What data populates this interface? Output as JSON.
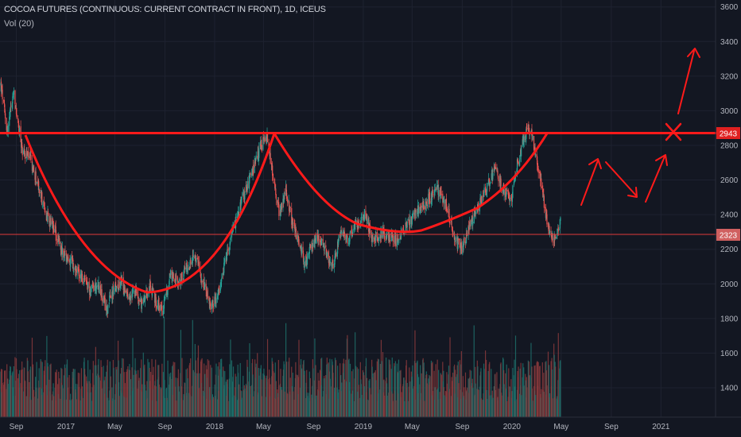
{
  "header": {
    "title": "COCOA FUTURES (CONTINUOUS: CURRENT CONTRACT IN FRONT), 1D, ICEUS",
    "volume_label": "Vol (20)"
  },
  "colors": {
    "background": "#131722",
    "grid": "#1e2230",
    "axis_text": "#b2b5be",
    "candle_up": "#26a69a",
    "candle_down": "#ef5350",
    "volume_up": "#1f6f6a",
    "volume_down": "#8a3a3c",
    "annotation": "#ff1a1a",
    "support_line": "#e03a3a",
    "label_bg": "#e02020",
    "support_label_bg": "#d06060"
  },
  "price_labels": {
    "resistance": "2943",
    "support": "2323"
  },
  "chart_data": {
    "type": "candlestick",
    "title": "COCOA FUTURES (CONTINUOUS: CURRENT CONTRACT IN FRONT), 1D, ICEUS",
    "indicator": "Vol (20)",
    "y_axis": {
      "ticks": [
        1400,
        1600,
        1800,
        2000,
        2200,
        2400,
        2600,
        2800,
        3000,
        3200,
        3400,
        3600
      ],
      "range": [
        1230,
        3640
      ]
    },
    "x_axis": {
      "labels": [
        {
          "text": "Sep",
          "date": "2016-09"
        },
        {
          "text": "2017",
          "date": "2017-01"
        },
        {
          "text": "May",
          "date": "2017-05"
        },
        {
          "text": "Sep",
          "date": "2017-09"
        },
        {
          "text": "2018",
          "date": "2018-01"
        },
        {
          "text": "May",
          "date": "2018-05"
        },
        {
          "text": "Sep",
          "date": "2018-09"
        },
        {
          "text": "2019",
          "date": "2019-01"
        },
        {
          "text": "May",
          "date": "2019-05"
        },
        {
          "text": "Sep",
          "date": "2019-09"
        },
        {
          "text": "2020",
          "date": "2020-01"
        },
        {
          "text": "May",
          "date": "2020-05"
        },
        {
          "text": "Sep",
          "date": "2020-09"
        },
        {
          "text": "2021",
          "date": "2021-01"
        }
      ],
      "range": [
        "2016-07-23",
        "2021-05-15"
      ]
    },
    "price_path": [
      [
        "2016-07-25",
        3150
      ],
      [
        "2016-08-10",
        2880
      ],
      [
        "2016-08-25",
        3100
      ],
      [
        "2016-09-15",
        2780
      ],
      [
        "2016-10-05",
        2720
      ],
      [
        "2016-10-25",
        2560
      ],
      [
        "2016-11-10",
        2420
      ],
      [
        "2016-12-01",
        2320
      ],
      [
        "2016-12-20",
        2200
      ],
      [
        "2017-01-10",
        2140
      ],
      [
        "2017-02-05",
        2050
      ],
      [
        "2017-03-01",
        1960
      ],
      [
        "2017-03-20",
        2000
      ],
      [
        "2017-04-10",
        1850
      ],
      [
        "2017-04-25",
        1950
      ],
      [
        "2017-05-15",
        2020
      ],
      [
        "2017-06-05",
        1900
      ],
      [
        "2017-06-20",
        1960
      ],
      [
        "2017-07-05",
        1880
      ],
      [
        "2017-07-25",
        2000
      ],
      [
        "2017-08-10",
        1900
      ],
      [
        "2017-08-25",
        1850
      ],
      [
        "2017-09-15",
        2050
      ],
      [
        "2017-10-05",
        2000
      ],
      [
        "2017-10-25",
        2100
      ],
      [
        "2017-11-15",
        2150
      ],
      [
        "2017-12-05",
        2000
      ],
      [
        "2017-12-20",
        1880
      ],
      [
        "2018-01-05",
        1900
      ],
      [
        "2018-01-25",
        2100
      ],
      [
        "2018-02-15",
        2300
      ],
      [
        "2018-03-05",
        2450
      ],
      [
        "2018-03-20",
        2550
      ],
      [
        "2018-04-05",
        2650
      ],
      [
        "2018-04-25",
        2800
      ],
      [
        "2018-05-10",
        2840
      ],
      [
        "2018-05-25",
        2600
      ],
      [
        "2018-06-10",
        2400
      ],
      [
        "2018-06-25",
        2550
      ],
      [
        "2018-07-10",
        2350
      ],
      [
        "2018-07-25",
        2250
      ],
      [
        "2018-08-10",
        2120
      ],
      [
        "2018-08-25",
        2200
      ],
      [
        "2018-09-15",
        2280
      ],
      [
        "2018-10-05",
        2150
      ],
      [
        "2018-10-20",
        2100
      ],
      [
        "2018-11-05",
        2300
      ],
      [
        "2018-11-25",
        2250
      ],
      [
        "2018-12-15",
        2350
      ],
      [
        "2019-01-05",
        2400
      ],
      [
        "2019-01-25",
        2250
      ],
      [
        "2019-02-15",
        2300
      ],
      [
        "2019-03-05",
        2270
      ],
      [
        "2019-03-25",
        2250
      ],
      [
        "2019-04-15",
        2330
      ],
      [
        "2019-05-05",
        2400
      ],
      [
        "2019-05-25",
        2450
      ],
      [
        "2019-06-15",
        2500
      ],
      [
        "2019-07-05",
        2550
      ],
      [
        "2019-07-25",
        2450
      ],
      [
        "2019-08-15",
        2250
      ],
      [
        "2019-09-01",
        2200
      ],
      [
        "2019-09-20",
        2350
      ],
      [
        "2019-10-10",
        2450
      ],
      [
        "2019-10-30",
        2550
      ],
      [
        "2019-11-20",
        2650
      ],
      [
        "2019-12-10",
        2550
      ],
      [
        "2019-12-30",
        2480
      ],
      [
        "2020-01-15",
        2700
      ],
      [
        "2020-01-30",
        2850
      ],
      [
        "2020-02-15",
        2900
      ],
      [
        "2020-02-28",
        2750
      ],
      [
        "2020-03-15",
        2550
      ],
      [
        "2020-03-30",
        2300
      ],
      [
        "2020-04-15",
        2250
      ],
      [
        "2020-04-30",
        2360
      ]
    ]
  }
}
